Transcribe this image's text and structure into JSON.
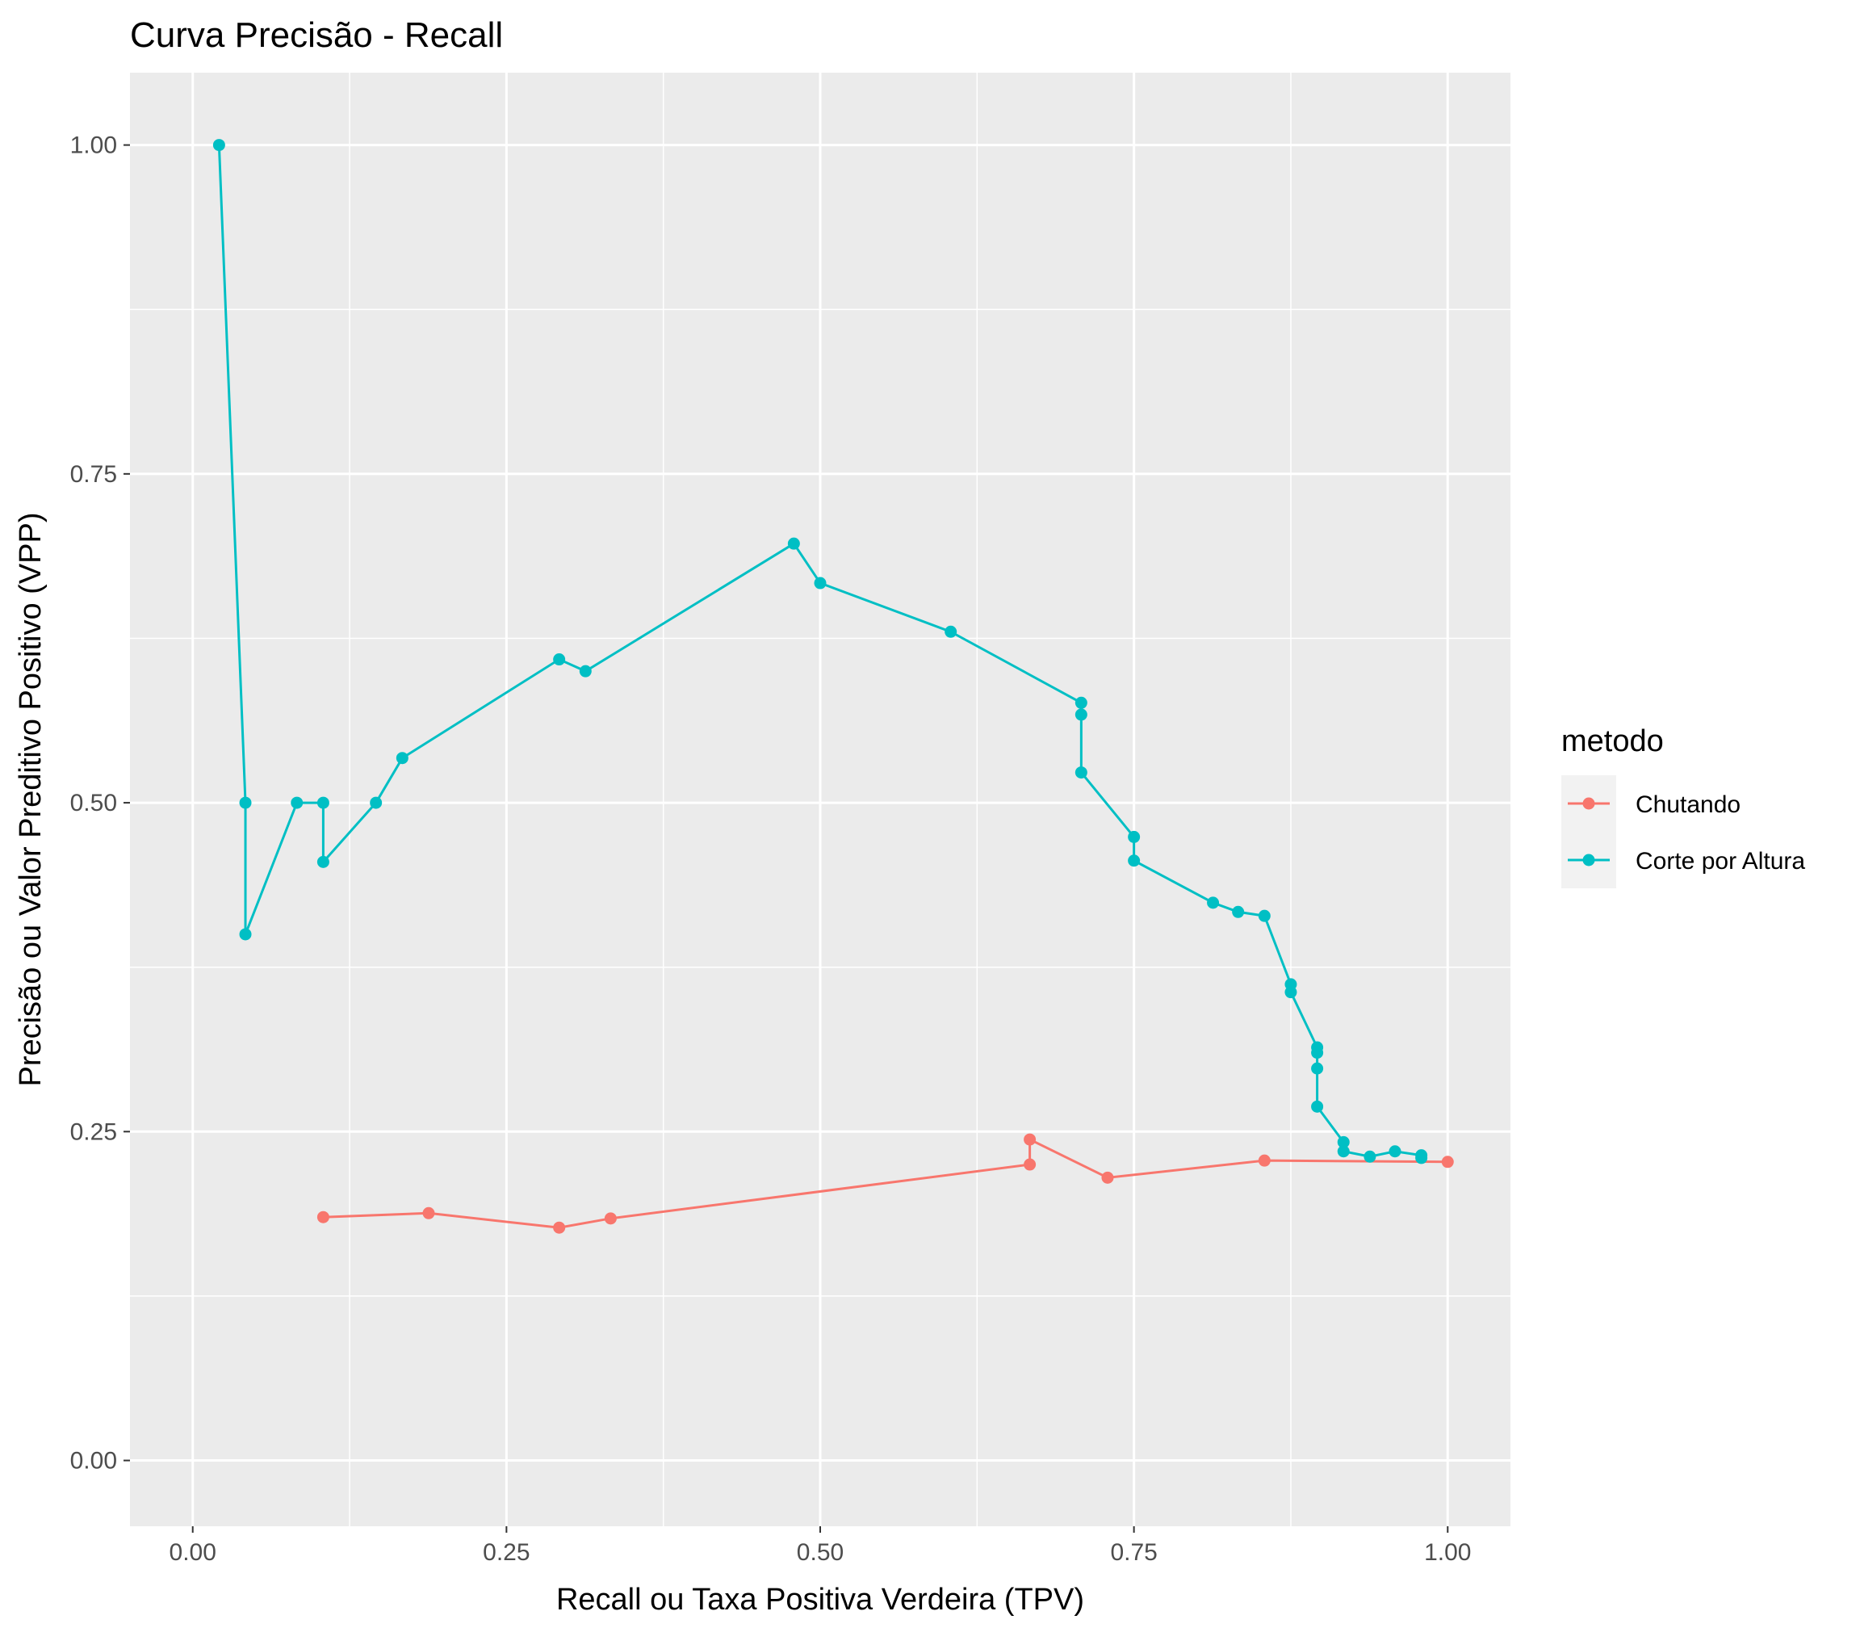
{
  "chart_data": {
    "type": "line",
    "title": "Curva Precisão - Recall",
    "xlabel": "Recall ou Taxa Positiva Verdeira (TPV)",
    "ylabel": "Precisão ou Valor Preditivo Positivo (VPP)",
    "xlim": [
      -0.05,
      1.05
    ],
    "ylim": [
      -0.05,
      1.055
    ],
    "xticks": [
      0.0,
      0.25,
      0.5,
      0.75,
      1.0
    ],
    "xtick_labels": [
      "0.00",
      "0.25",
      "0.50",
      "0.75",
      "1.00"
    ],
    "yticks": [
      0.0,
      0.25,
      0.5,
      0.75,
      1.0
    ],
    "ytick_labels": [
      "0.00",
      "0.25",
      "0.50",
      "0.75",
      "1.00"
    ],
    "grid": true,
    "legend": {
      "title": "metodo",
      "position": "right"
    },
    "series": [
      {
        "name": "Chutando",
        "color": "#F8766D",
        "x": [
          0.104,
          0.188,
          0.292,
          0.333,
          0.667,
          0.667,
          0.729,
          0.854,
          1.0
        ],
        "y": [
          0.185,
          0.188,
          0.177,
          0.184,
          0.225,
          0.244,
          0.215,
          0.228,
          0.227
        ]
      },
      {
        "name": "Corte por Altura",
        "color": "#00BFC4",
        "x": [
          0.021,
          0.042,
          0.042,
          0.083,
          0.104,
          0.104,
          0.146,
          0.167,
          0.292,
          0.313,
          0.479,
          0.5,
          0.604,
          0.708,
          0.708,
          0.708,
          0.75,
          0.75,
          0.813,
          0.833,
          0.854,
          0.875,
          0.875,
          0.896,
          0.896,
          0.896,
          0.896,
          0.917,
          0.917,
          0.938,
          0.958,
          0.979,
          0.979
        ],
        "y": [
          1.0,
          0.5,
          0.4,
          0.5,
          0.5,
          0.455,
          0.5,
          0.534,
          0.609,
          0.6,
          0.697,
          0.667,
          0.63,
          0.576,
          0.567,
          0.523,
          0.474,
          0.456,
          0.424,
          0.417,
          0.414,
          0.362,
          0.356,
          0.314,
          0.31,
          0.298,
          0.269,
          0.242,
          0.235,
          0.231,
          0.235,
          0.232,
          0.23
        ]
      }
    ]
  }
}
